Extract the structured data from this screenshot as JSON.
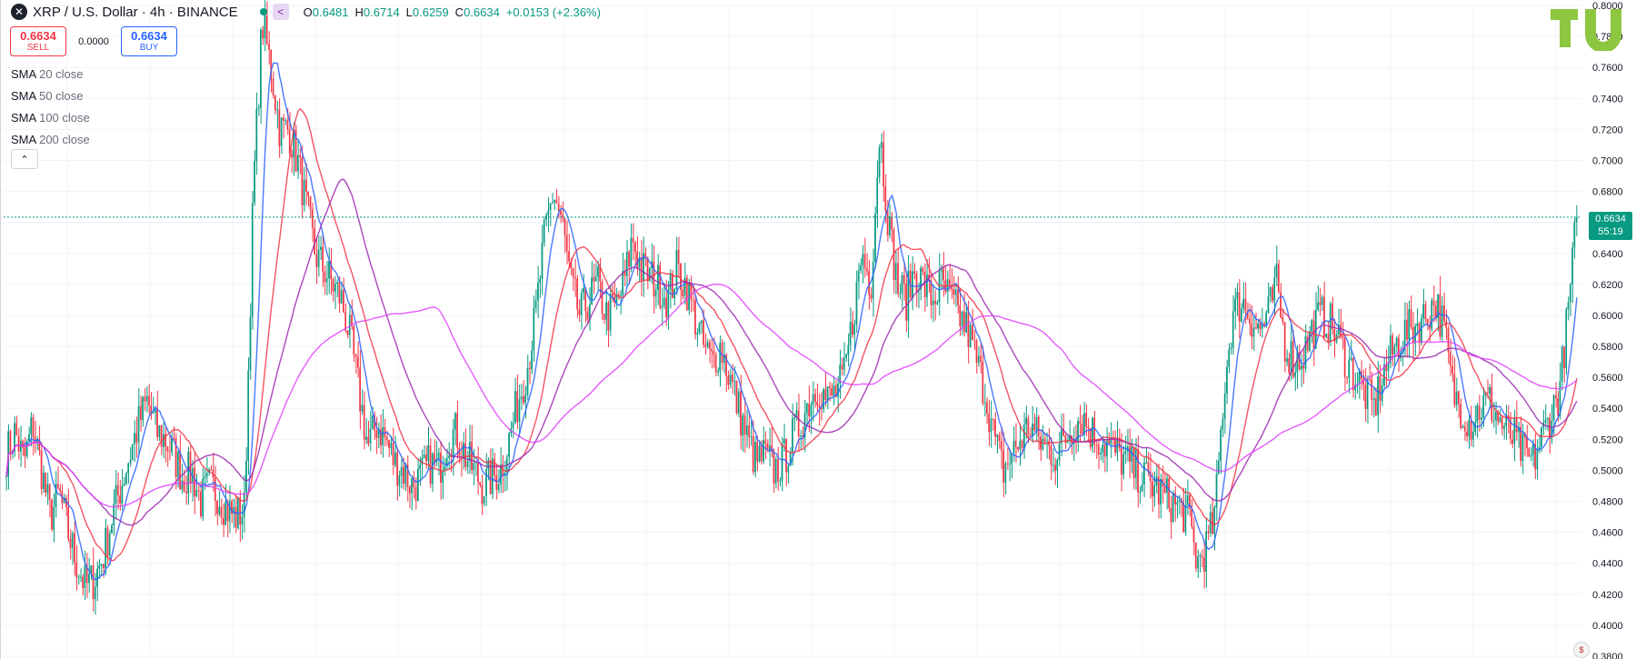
{
  "header": {
    "symbol": "XRP / U.S. Dollar · 4h · BINANCE",
    "logo_glyph": "✕",
    "open_label": "O",
    "open": "0.6481",
    "high_label": "H",
    "high": "0.6714",
    "low_label": "L",
    "low": "0.6259",
    "close_label": "C",
    "close": "0.6634",
    "change": "+0.0153 (+2.36%)"
  },
  "trade": {
    "sell_price": "0.6634",
    "sell_label": "SELL",
    "spread": "0.0000",
    "buy_price": "0.6634",
    "buy_label": "BUY"
  },
  "legend": [
    {
      "name": "SMA",
      "params": "20 close"
    },
    {
      "name": "SMA",
      "params": "50 close"
    },
    {
      "name": "SMA",
      "params": "100 close"
    },
    {
      "name": "SMA",
      "params": "200 close"
    }
  ],
  "collapse_glyph": "⌃",
  "last_price": {
    "value": "0.6634",
    "countdown": "55:19"
  },
  "colors": {
    "up": "#089981",
    "down": "#f23645",
    "sma20": "#2962ff",
    "sma50": "#f23645",
    "sma100": "#9c27b0",
    "sma200": "#e040fb",
    "last_price_line": "#089981"
  },
  "icons": {
    "share": "share-icon",
    "logo": "tradingview-logo",
    "flag": "currency-flag-icon"
  },
  "chart_data": {
    "type": "candlestick",
    "y_axis": {
      "min": 0.38,
      "max": 0.8,
      "ticks": [
        "0.3800",
        "0.4000",
        "0.4200",
        "0.4400",
        "0.4600",
        "0.4800",
        "0.5000",
        "0.5200",
        "0.5400",
        "0.5600",
        "0.5800",
        "0.6000",
        "0.6200",
        "0.6400",
        "0.6600",
        "0.6800",
        "0.7000",
        "0.7200",
        "0.7400",
        "0.7600",
        "0.7800",
        "0.8000"
      ],
      "position": "right"
    },
    "last_close": 0.6634,
    "close_path": [
      0.51,
      0.525,
      0.505,
      0.53,
      0.5,
      0.47,
      0.485,
      0.46,
      0.44,
      0.425,
      0.43,
      0.445,
      0.47,
      0.49,
      0.51,
      0.53,
      0.545,
      0.525,
      0.52,
      0.51,
      0.495,
      0.5,
      0.48,
      0.49,
      0.485,
      0.475,
      0.47,
      0.475,
      0.68,
      0.79,
      0.76,
      0.72,
      0.72,
      0.7,
      0.67,
      0.64,
      0.63,
      0.62,
      0.61,
      0.585,
      0.55,
      0.515,
      0.53,
      0.52,
      0.505,
      0.5,
      0.49,
      0.495,
      0.505,
      0.5,
      0.52,
      0.525,
      0.51,
      0.5,
      0.49,
      0.495,
      0.5,
      0.52,
      0.545,
      0.565,
      0.6,
      0.65,
      0.68,
      0.66,
      0.62,
      0.6,
      0.61,
      0.62,
      0.6,
      0.605,
      0.62,
      0.65,
      0.63,
      0.625,
      0.62,
      0.61,
      0.63,
      0.62,
      0.6,
      0.58,
      0.57,
      0.58,
      0.56,
      0.54,
      0.52,
      0.505,
      0.51,
      0.5,
      0.505,
      0.52,
      0.53,
      0.545,
      0.555,
      0.545,
      0.55,
      0.56,
      0.6,
      0.64,
      0.62,
      0.72,
      0.66,
      0.62,
      0.61,
      0.63,
      0.62,
      0.61,
      0.62,
      0.61,
      0.6,
      0.59,
      0.57,
      0.55,
      0.52,
      0.5,
      0.51,
      0.52,
      0.53,
      0.52,
      0.515,
      0.51,
      0.52,
      0.53,
      0.535,
      0.525,
      0.52,
      0.515,
      0.51,
      0.505,
      0.5,
      0.495,
      0.49,
      0.485,
      0.48,
      0.475,
      0.47,
      0.44,
      0.45,
      0.47,
      0.55,
      0.6,
      0.61,
      0.6,
      0.59,
      0.6,
      0.62,
      0.58,
      0.57,
      0.575,
      0.59,
      0.6,
      0.595,
      0.585,
      0.57,
      0.56,
      0.55,
      0.54,
      0.56,
      0.575,
      0.585,
      0.59,
      0.595,
      0.6,
      0.61,
      0.59,
      0.55,
      0.54,
      0.53,
      0.54,
      0.545,
      0.535,
      0.525,
      0.52,
      0.51,
      0.505,
      0.52,
      0.535,
      0.55,
      0.6,
      0.6634
    ],
    "series": [
      {
        "name": "SMA 20 close",
        "period": 20
      },
      {
        "name": "SMA 50 close",
        "period": 50
      },
      {
        "name": "SMA 100 close",
        "period": 100
      },
      {
        "name": "SMA 200 close",
        "period": 200
      }
    ],
    "grid": true
  }
}
